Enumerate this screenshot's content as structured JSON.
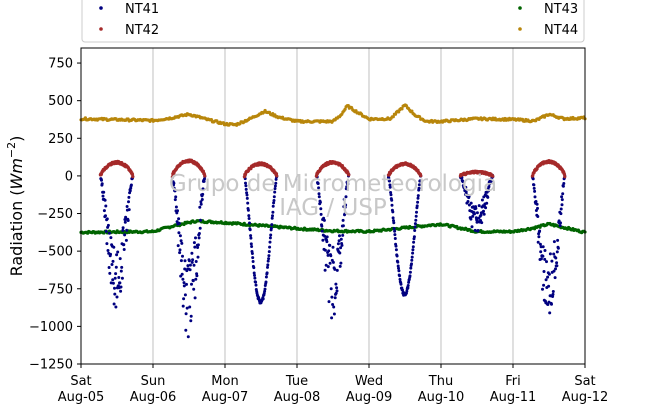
{
  "chart_data": {
    "type": "scatter",
    "ylabel": "Radiation ($Wm^{-2}$)",
    "ylim": [
      -1250,
      850
    ],
    "yticks": [
      -1250,
      -1000,
      -750,
      -500,
      -250,
      0,
      250,
      500,
      750
    ],
    "ytick_labels": [
      "−1250",
      "−1000",
      "−750",
      "−500",
      "−250",
      "0",
      "250",
      "500",
      "750"
    ],
    "xlim": [
      "2017-08-05",
      "2017-08-12"
    ],
    "xticks": [
      {
        "line1": "Sat",
        "line2": "Aug-05"
      },
      {
        "line1": "Sun",
        "line2": "Aug-06"
      },
      {
        "line1": "Mon",
        "line2": "Aug-07"
      },
      {
        "line1": "Tue",
        "line2": "Aug-08"
      },
      {
        "line1": "Wed",
        "line2": "Aug-09"
      },
      {
        "line1": "Thu",
        "line2": "Aug-10"
      },
      {
        "line1": "Fri",
        "line2": "Aug-11"
      },
      {
        "line1": "Sat",
        "line2": "Aug-12"
      }
    ],
    "grid": "vertical",
    "legend": "top",
    "series": [
      {
        "name": "NT41",
        "color": "#000080",
        "description": "daytime negative dips",
        "daily_min": [
          -820,
          -980,
          -840,
          -860,
          -790,
          -350,
          -930
        ]
      },
      {
        "name": "NT42",
        "color": "#a52a2a",
        "description": "daytime small positive arcs",
        "daily_peak": [
          90,
          100,
          80,
          90,
          80,
          25,
          95
        ]
      },
      {
        "name": "NT43",
        "color": "#006400",
        "description": "roughly flat near -370",
        "points": [
          [
            0.0,
            -375
          ],
          [
            1.0,
            -370
          ],
          [
            1.3,
            -330
          ],
          [
            1.6,
            -300
          ],
          [
            2.0,
            -310
          ],
          [
            2.5,
            -330
          ],
          [
            3.0,
            -350
          ],
          [
            3.5,
            -365
          ],
          [
            4.0,
            -370
          ],
          [
            4.5,
            -345
          ],
          [
            5.0,
            -320
          ],
          [
            5.5,
            -370
          ],
          [
            6.0,
            -370
          ],
          [
            6.3,
            -345
          ],
          [
            6.5,
            -320
          ],
          [
            7.0,
            -375
          ]
        ]
      },
      {
        "name": "NT44",
        "color": "#b8860b",
        "description": "flat near 370 with daytime bumps",
        "points": [
          [
            0.0,
            380
          ],
          [
            1.0,
            368
          ],
          [
            1.25,
            385
          ],
          [
            1.5,
            410
          ],
          [
            1.75,
            375
          ],
          [
            2.0,
            345
          ],
          [
            2.15,
            340
          ],
          [
            2.35,
            380
          ],
          [
            2.55,
            430
          ],
          [
            2.75,
            390
          ],
          [
            3.0,
            362
          ],
          [
            3.5,
            362
          ],
          [
            3.6,
            400
          ],
          [
            3.7,
            465
          ],
          [
            3.85,
            420
          ],
          [
            4.0,
            378
          ],
          [
            4.3,
            380
          ],
          [
            4.5,
            470
          ],
          [
            4.65,
            400
          ],
          [
            4.8,
            362
          ],
          [
            5.0,
            362
          ],
          [
            5.5,
            380
          ],
          [
            6.0,
            375
          ],
          [
            6.3,
            365
          ],
          [
            6.5,
            410
          ],
          [
            6.7,
            380
          ],
          [
            7.0,
            385
          ]
        ]
      }
    ]
  },
  "watermark": {
    "line1": "Grupo de Micrometeorologia",
    "line2": "IAG / USP"
  }
}
